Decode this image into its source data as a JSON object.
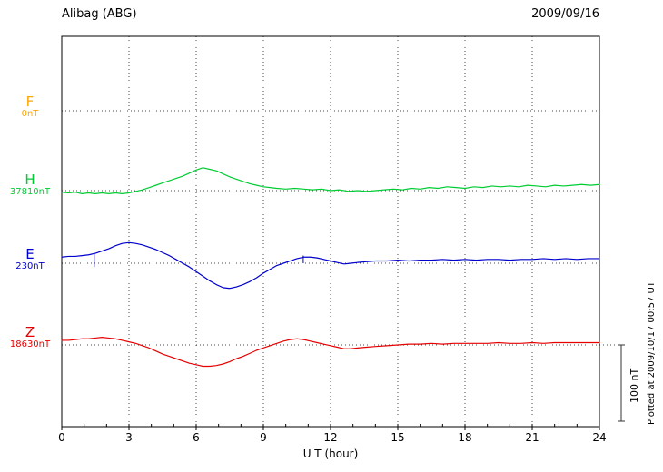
{
  "chart_data": {
    "type": "line",
    "title": "Alibag (ABG)",
    "date": "2009/09/16",
    "xlabel": "U T (hour)",
    "x_range": [
      0,
      24
    ],
    "x_ticks": [
      0,
      3,
      6,
      9,
      12,
      15,
      18,
      21,
      24
    ],
    "y_unit": "nT",
    "offset_unit": "nT offset from channel base value",
    "grid": "dotted vertical lines every 3 hours; dotted horizontal baseline per channel",
    "scale_bar": {
      "label": "100 nT",
      "nT": 100
    },
    "plotted_note": "Plotted at 2009/10/17 00:57 UT",
    "series": [
      {
        "name": "F",
        "base_value_label": "0nT",
        "color": "#FFA500",
        "points": []
      },
      {
        "name": "H",
        "base_value_label": "37810nT",
        "color": "#00CC33",
        "points": [
          [
            0,
            -2
          ],
          [
            0.3,
            -3
          ],
          [
            0.6,
            -2
          ],
          [
            0.9,
            -4
          ],
          [
            1.2,
            -3
          ],
          [
            1.5,
            -4
          ],
          [
            1.8,
            -3
          ],
          [
            2.1,
            -4
          ],
          [
            2.4,
            -3
          ],
          [
            2.7,
            -4
          ],
          [
            3,
            -3
          ],
          [
            3.3,
            -1
          ],
          [
            3.6,
            1
          ],
          [
            3.9,
            4
          ],
          [
            4.2,
            7
          ],
          [
            4.5,
            10
          ],
          [
            4.8,
            13
          ],
          [
            5.1,
            16
          ],
          [
            5.4,
            19
          ],
          [
            5.7,
            23
          ],
          [
            6,
            27
          ],
          [
            6.3,
            30
          ],
          [
            6.6,
            28
          ],
          [
            6.9,
            26
          ],
          [
            7.2,
            22
          ],
          [
            7.5,
            18
          ],
          [
            7.8,
            15
          ],
          [
            8.1,
            12
          ],
          [
            8.4,
            9
          ],
          [
            8.7,
            7
          ],
          [
            9,
            5
          ],
          [
            9.3,
            4
          ],
          [
            9.6,
            3
          ],
          [
            10,
            2
          ],
          [
            10.4,
            3
          ],
          [
            10.8,
            2
          ],
          [
            11.2,
            1
          ],
          [
            11.6,
            2
          ],
          [
            12,
            0
          ],
          [
            12.4,
            1
          ],
          [
            12.8,
            -1
          ],
          [
            13.2,
            0
          ],
          [
            13.6,
            -1
          ],
          [
            14,
            0
          ],
          [
            14.4,
            1
          ],
          [
            14.8,
            2
          ],
          [
            15.2,
            1
          ],
          [
            15.6,
            3
          ],
          [
            16,
            2
          ],
          [
            16.4,
            4
          ],
          [
            16.8,
            3
          ],
          [
            17.2,
            5
          ],
          [
            17.6,
            4
          ],
          [
            18,
            3
          ],
          [
            18.4,
            5
          ],
          [
            18.8,
            4
          ],
          [
            19.2,
            6
          ],
          [
            19.6,
            5
          ],
          [
            20,
            6
          ],
          [
            20.4,
            5
          ],
          [
            20.8,
            7
          ],
          [
            21.2,
            6
          ],
          [
            21.6,
            5
          ],
          [
            22,
            7
          ],
          [
            22.4,
            6
          ],
          [
            22.8,
            7
          ],
          [
            23.2,
            8
          ],
          [
            23.6,
            7
          ],
          [
            24,
            8
          ]
        ]
      },
      {
        "name": "E",
        "base_value_label": "230nT",
        "color": "#0000CC",
        "points": [
          [
            0,
            8
          ],
          [
            0.3,
            9
          ],
          [
            0.6,
            9
          ],
          [
            0.9,
            10
          ],
          [
            1.2,
            11
          ],
          [
            1.5,
            13
          ],
          [
            1.8,
            16
          ],
          [
            2.1,
            19
          ],
          [
            2.4,
            23
          ],
          [
            2.7,
            26
          ],
          [
            3,
            27
          ],
          [
            3.3,
            26
          ],
          [
            3.6,
            24
          ],
          [
            3.9,
            21
          ],
          [
            4.2,
            18
          ],
          [
            4.5,
            14
          ],
          [
            4.8,
            10
          ],
          [
            5.1,
            5
          ],
          [
            5.4,
            0
          ],
          [
            5.7,
            -5
          ],
          [
            6,
            -11
          ],
          [
            6.3,
            -17
          ],
          [
            6.6,
            -23
          ],
          [
            6.9,
            -28
          ],
          [
            7.2,
            -32
          ],
          [
            7.5,
            -33
          ],
          [
            7.8,
            -31
          ],
          [
            8.1,
            -28
          ],
          [
            8.4,
            -24
          ],
          [
            8.7,
            -19
          ],
          [
            9,
            -13
          ],
          [
            9.3,
            -8
          ],
          [
            9.6,
            -3
          ],
          [
            9.9,
            0
          ],
          [
            10.2,
            3
          ],
          [
            10.5,
            6
          ],
          [
            10.8,
            8
          ],
          [
            11.1,
            8
          ],
          [
            11.4,
            7
          ],
          [
            11.7,
            5
          ],
          [
            12,
            3
          ],
          [
            12.3,
            1
          ],
          [
            12.6,
            -1
          ],
          [
            12.9,
            0
          ],
          [
            13.2,
            1
          ],
          [
            13.6,
            2
          ],
          [
            14,
            3
          ],
          [
            14.5,
            3
          ],
          [
            15,
            4
          ],
          [
            15.5,
            3
          ],
          [
            16,
            4
          ],
          [
            16.5,
            4
          ],
          [
            17,
            5
          ],
          [
            17.5,
            4
          ],
          [
            18,
            5
          ],
          [
            18.5,
            4
          ],
          [
            19,
            5
          ],
          [
            19.5,
            5
          ],
          [
            20,
            4
          ],
          [
            20.5,
            5
          ],
          [
            21,
            5
          ],
          [
            21.5,
            6
          ],
          [
            22,
            5
          ],
          [
            22.5,
            6
          ],
          [
            23,
            5
          ],
          [
            23.5,
            6
          ],
          [
            24,
            6
          ]
        ],
        "spikes": [
          [
            1.45,
            13,
            -5
          ],
          [
            10.78,
            10,
            0
          ]
        ]
      },
      {
        "name": "Z",
        "base_value_label": "18630nT",
        "color": "#E60000",
        "points": [
          [
            0,
            6
          ],
          [
            0.3,
            6
          ],
          [
            0.6,
            7
          ],
          [
            0.9,
            8
          ],
          [
            1.2,
            8
          ],
          [
            1.5,
            9
          ],
          [
            1.8,
            10
          ],
          [
            2.1,
            9
          ],
          [
            2.4,
            8
          ],
          [
            2.7,
            6
          ],
          [
            3,
            4
          ],
          [
            3.3,
            2
          ],
          [
            3.6,
            -1
          ],
          [
            3.9,
            -4
          ],
          [
            4.2,
            -8
          ],
          [
            4.5,
            -12
          ],
          [
            4.8,
            -15
          ],
          [
            5.1,
            -18
          ],
          [
            5.4,
            -21
          ],
          [
            5.7,
            -24
          ],
          [
            6,
            -26
          ],
          [
            6.3,
            -28
          ],
          [
            6.6,
            -28
          ],
          [
            6.9,
            -27
          ],
          [
            7.2,
            -25
          ],
          [
            7.5,
            -22
          ],
          [
            7.8,
            -18
          ],
          [
            8.1,
            -15
          ],
          [
            8.4,
            -11
          ],
          [
            8.7,
            -7
          ],
          [
            9,
            -4
          ],
          [
            9.3,
            -1
          ],
          [
            9.6,
            2
          ],
          [
            9.9,
            5
          ],
          [
            10.2,
            7
          ],
          [
            10.5,
            8
          ],
          [
            10.8,
            7
          ],
          [
            11.1,
            5
          ],
          [
            11.4,
            3
          ],
          [
            11.7,
            1
          ],
          [
            12,
            -1
          ],
          [
            12.3,
            -3
          ],
          [
            12.6,
            -5
          ],
          [
            12.9,
            -5
          ],
          [
            13.2,
            -4
          ],
          [
            13.6,
            -3
          ],
          [
            14,
            -2
          ],
          [
            14.5,
            -1
          ],
          [
            15,
            0
          ],
          [
            15.5,
            1
          ],
          [
            16,
            1
          ],
          [
            16.5,
            2
          ],
          [
            17,
            1
          ],
          [
            17.5,
            2
          ],
          [
            18,
            2
          ],
          [
            18.5,
            2
          ],
          [
            19,
            2
          ],
          [
            19.5,
            3
          ],
          [
            20,
            2
          ],
          [
            20.5,
            2
          ],
          [
            21,
            3
          ],
          [
            21.5,
            2
          ],
          [
            22,
            3
          ],
          [
            22.5,
            3
          ],
          [
            23,
            3
          ],
          [
            23.5,
            3
          ],
          [
            24,
            3
          ]
        ]
      }
    ]
  }
}
